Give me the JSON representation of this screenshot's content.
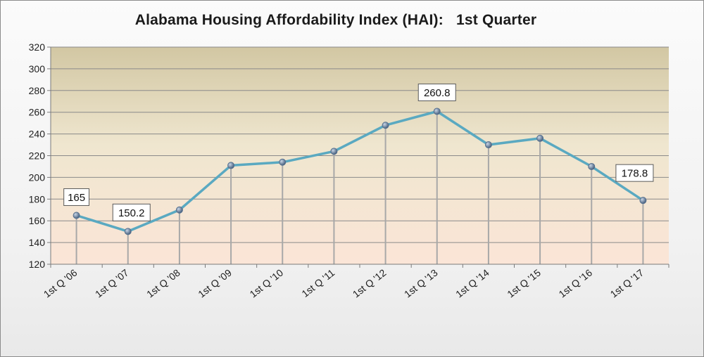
{
  "chart_data": {
    "type": "line",
    "title": "Alabama Housing Affordability Index (HAI):   1st Quarter",
    "xlabel": "",
    "ylabel": "",
    "ylim": [
      120,
      320
    ],
    "yticks": [
      120,
      140,
      160,
      180,
      200,
      220,
      240,
      260,
      280,
      300,
      320
    ],
    "categories": [
      "1st Q '06",
      "1st Q '07",
      "1st Q '08",
      "1st Q '09",
      "1st Q '10",
      "1st Q '11",
      "1st Q '12",
      "1st Q '13",
      "1st Q '14",
      "1st Q '15",
      "1st Q '16",
      "1st Q '17"
    ],
    "series": [
      {
        "name": "HAI",
        "values": [
          165,
          150.2,
          170,
          211,
          214,
          224,
          248,
          260.8,
          230,
          236,
          210,
          178.8
        ]
      }
    ],
    "data_labels": [
      {
        "index": 0,
        "text": "165"
      },
      {
        "index": 1,
        "text": "150.2"
      },
      {
        "index": 7,
        "text": "260.8"
      },
      {
        "index": 11,
        "text": "178.8"
      }
    ],
    "grid": true,
    "legend": "none",
    "colors": {
      "line": "#5aa9c1",
      "marker": "#56708e",
      "drop_line": "#a8a8a8",
      "grid": "#8a8a8a",
      "plot_top": "#d2c7a3",
      "plot_bottom": "#fbe5d7"
    }
  }
}
